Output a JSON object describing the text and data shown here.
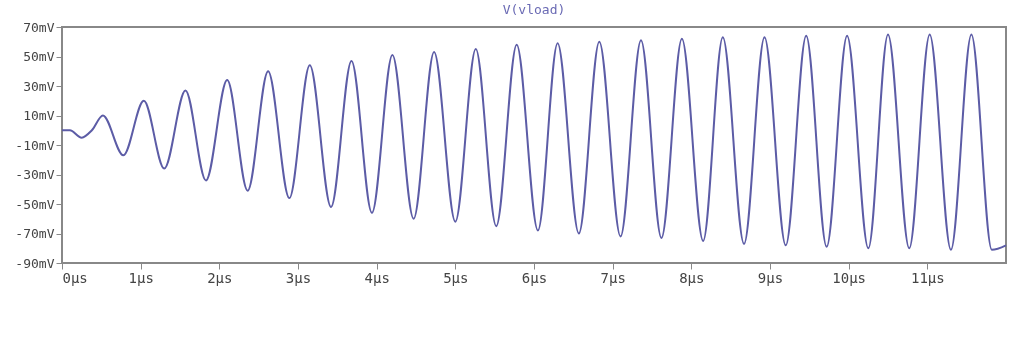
{
  "chart_data": {
    "type": "line",
    "title": "V(vload)",
    "grid": false,
    "marker": "none",
    "line_style": "solid",
    "xlim": [
      0,
      12
    ],
    "ylim": [
      -90,
      70
    ],
    "xticks": [
      {
        "value": 0,
        "label": "0µs"
      },
      {
        "value": 1,
        "label": "1µs"
      },
      {
        "value": 2,
        "label": "2µs"
      },
      {
        "value": 3,
        "label": "3µs"
      },
      {
        "value": 4,
        "label": "4µs"
      },
      {
        "value": 5,
        "label": "5µs"
      },
      {
        "value": 6,
        "label": "6µs"
      },
      {
        "value": 7,
        "label": "7µs"
      },
      {
        "value": 8,
        "label": "8µs"
      },
      {
        "value": 9,
        "label": "9µs"
      },
      {
        "value": 10,
        "label": "10µs"
      },
      {
        "value": 11,
        "label": "11µs"
      }
    ],
    "yticks": [
      {
        "value": 70,
        "label": "70mV"
      },
      {
        "value": 50,
        "label": "50mV"
      },
      {
        "value": 30,
        "label": "30mV"
      },
      {
        "value": 10,
        "label": "10mV"
      },
      {
        "value": -10,
        "label": "-10mV"
      },
      {
        "value": -30,
        "label": "-30mV"
      },
      {
        "value": -50,
        "label": "-50mV"
      },
      {
        "value": -70,
        "label": "-70mV"
      },
      {
        "value": -90,
        "label": "-90mV"
      }
    ],
    "x": [
      0,
      0.1,
      0.25,
      0.38,
      0.52,
      0.78,
      1.04,
      1.3,
      1.57,
      1.83,
      2.1,
      2.36,
      2.62,
      2.89,
      3.15,
      3.42,
      3.68,
      3.94,
      4.2,
      4.47,
      4.73,
      5.0,
      5.26,
      5.52,
      5.78,
      6.05,
      6.3,
      6.57,
      6.83,
      7.1,
      7.36,
      7.62,
      7.88,
      8.15,
      8.4,
      8.67,
      8.93,
      9.2,
      9.46,
      9.72,
      9.98,
      10.25,
      10.5,
      10.77,
      11.03,
      11.3,
      11.56,
      11.82,
      12
    ],
    "series": [
      {
        "color": "#5c5ca6",
        "values": [
          0,
          0,
          -5,
          0,
          10,
          -17,
          20,
          -26,
          27,
          -34,
          34,
          -41,
          40,
          -46,
          44,
          -52,
          47,
          -56,
          51,
          -60,
          53,
          -62,
          55,
          -65,
          58,
          -68,
          59,
          -70,
          60,
          -72,
          61,
          -73,
          62,
          -75,
          63,
          -77,
          63,
          -78,
          64,
          -79,
          64,
          -80,
          65,
          -80,
          65,
          -81,
          65,
          -81,
          -78
        ]
      }
    ]
  }
}
